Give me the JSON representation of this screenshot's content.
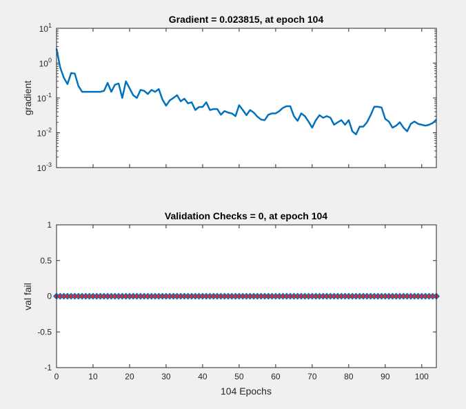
{
  "chart_data": [
    {
      "type": "line",
      "title": "Gradient = 0.023815, at epoch 104",
      "xlabel": "",
      "ylabel": "gradient",
      "yscale": "log",
      "xlim": [
        0,
        104
      ],
      "ylim": [
        0.001,
        10
      ],
      "ytick_labels": [
        {
          "base": "10",
          "exp": "1"
        },
        {
          "base": "10",
          "exp": "0"
        },
        {
          "base": "10",
          "exp": "-1"
        },
        {
          "base": "10",
          "exp": "-2"
        },
        {
          "base": "10",
          "exp": "-3"
        }
      ],
      "line_color": "#0072bd",
      "x": [
        0,
        1,
        2,
        3,
        4,
        5,
        6,
        7,
        8,
        9,
        10,
        11,
        12,
        13,
        14,
        15,
        16,
        17,
        18,
        19,
        20,
        21,
        22,
        23,
        24,
        25,
        26,
        27,
        28,
        29,
        30,
        31,
        32,
        33,
        34,
        35,
        36,
        37,
        38,
        39,
        40,
        41,
        42,
        43,
        44,
        45,
        46,
        47,
        48,
        49,
        50,
        51,
        52,
        53,
        54,
        55,
        56,
        57,
        58,
        59,
        60,
        61,
        62,
        63,
        64,
        65,
        66,
        67,
        68,
        69,
        70,
        71,
        72,
        73,
        74,
        75,
        76,
        77,
        78,
        79,
        80,
        81,
        82,
        83,
        84,
        85,
        86,
        87,
        88,
        89,
        90,
        91,
        92,
        93,
        94,
        95,
        96,
        97,
        98,
        99,
        100,
        101,
        102,
        103,
        104
      ],
      "y": [
        2.6,
        0.75,
        0.38,
        0.25,
        0.52,
        0.5,
        0.22,
        0.15,
        0.15,
        0.15,
        0.15,
        0.15,
        0.15,
        0.16,
        0.27,
        0.15,
        0.24,
        0.26,
        0.1,
        0.3,
        0.19,
        0.12,
        0.1,
        0.17,
        0.16,
        0.13,
        0.17,
        0.15,
        0.18,
        0.09,
        0.06,
        0.085,
        0.1,
        0.12,
        0.08,
        0.095,
        0.07,
        0.075,
        0.045,
        0.055,
        0.055,
        0.075,
        0.045,
        0.048,
        0.048,
        0.033,
        0.042,
        0.038,
        0.036,
        0.03,
        0.062,
        0.045,
        0.032,
        0.045,
        0.038,
        0.029,
        0.024,
        0.023,
        0.033,
        0.036,
        0.036,
        0.042,
        0.052,
        0.058,
        0.058,
        0.03,
        0.022,
        0.036,
        0.03,
        0.021,
        0.014,
        0.023,
        0.032,
        0.027,
        0.03,
        0.027,
        0.017,
        0.02,
        0.023,
        0.017,
        0.023,
        0.011,
        0.009,
        0.015,
        0.015,
        0.02,
        0.032,
        0.056,
        0.056,
        0.053,
        0.025,
        0.021,
        0.014,
        0.016,
        0.02,
        0.014,
        0.011,
        0.018,
        0.021,
        0.018,
        0.017,
        0.016,
        0.017,
        0.019,
        0.023815
      ]
    },
    {
      "type": "scatter",
      "title": "Validation Checks = 0, at epoch 104",
      "xlabel": "104 Epochs",
      "ylabel": "val fail",
      "xlim": [
        0,
        104
      ],
      "ylim": [
        -1,
        1
      ],
      "yticks": [
        1,
        0.5,
        0,
        -0.5,
        -1
      ],
      "ytick_labels": [
        "1",
        "0.5",
        "0",
        "-0.5",
        "-1"
      ],
      "xticks": [
        0,
        10,
        20,
        30,
        40,
        50,
        60,
        70,
        80,
        90,
        100
      ],
      "xtick_labels": [
        "0",
        "10",
        "20",
        "30",
        "40",
        "50",
        "60",
        "70",
        "80",
        "90",
        "100"
      ],
      "marker": "diamond",
      "marker_edge_color": "#0072bd",
      "marker_face_color": "#e8262b",
      "line_color": "#0072bd",
      "x_count": 105,
      "x_start": 0,
      "y_value": 0
    }
  ]
}
